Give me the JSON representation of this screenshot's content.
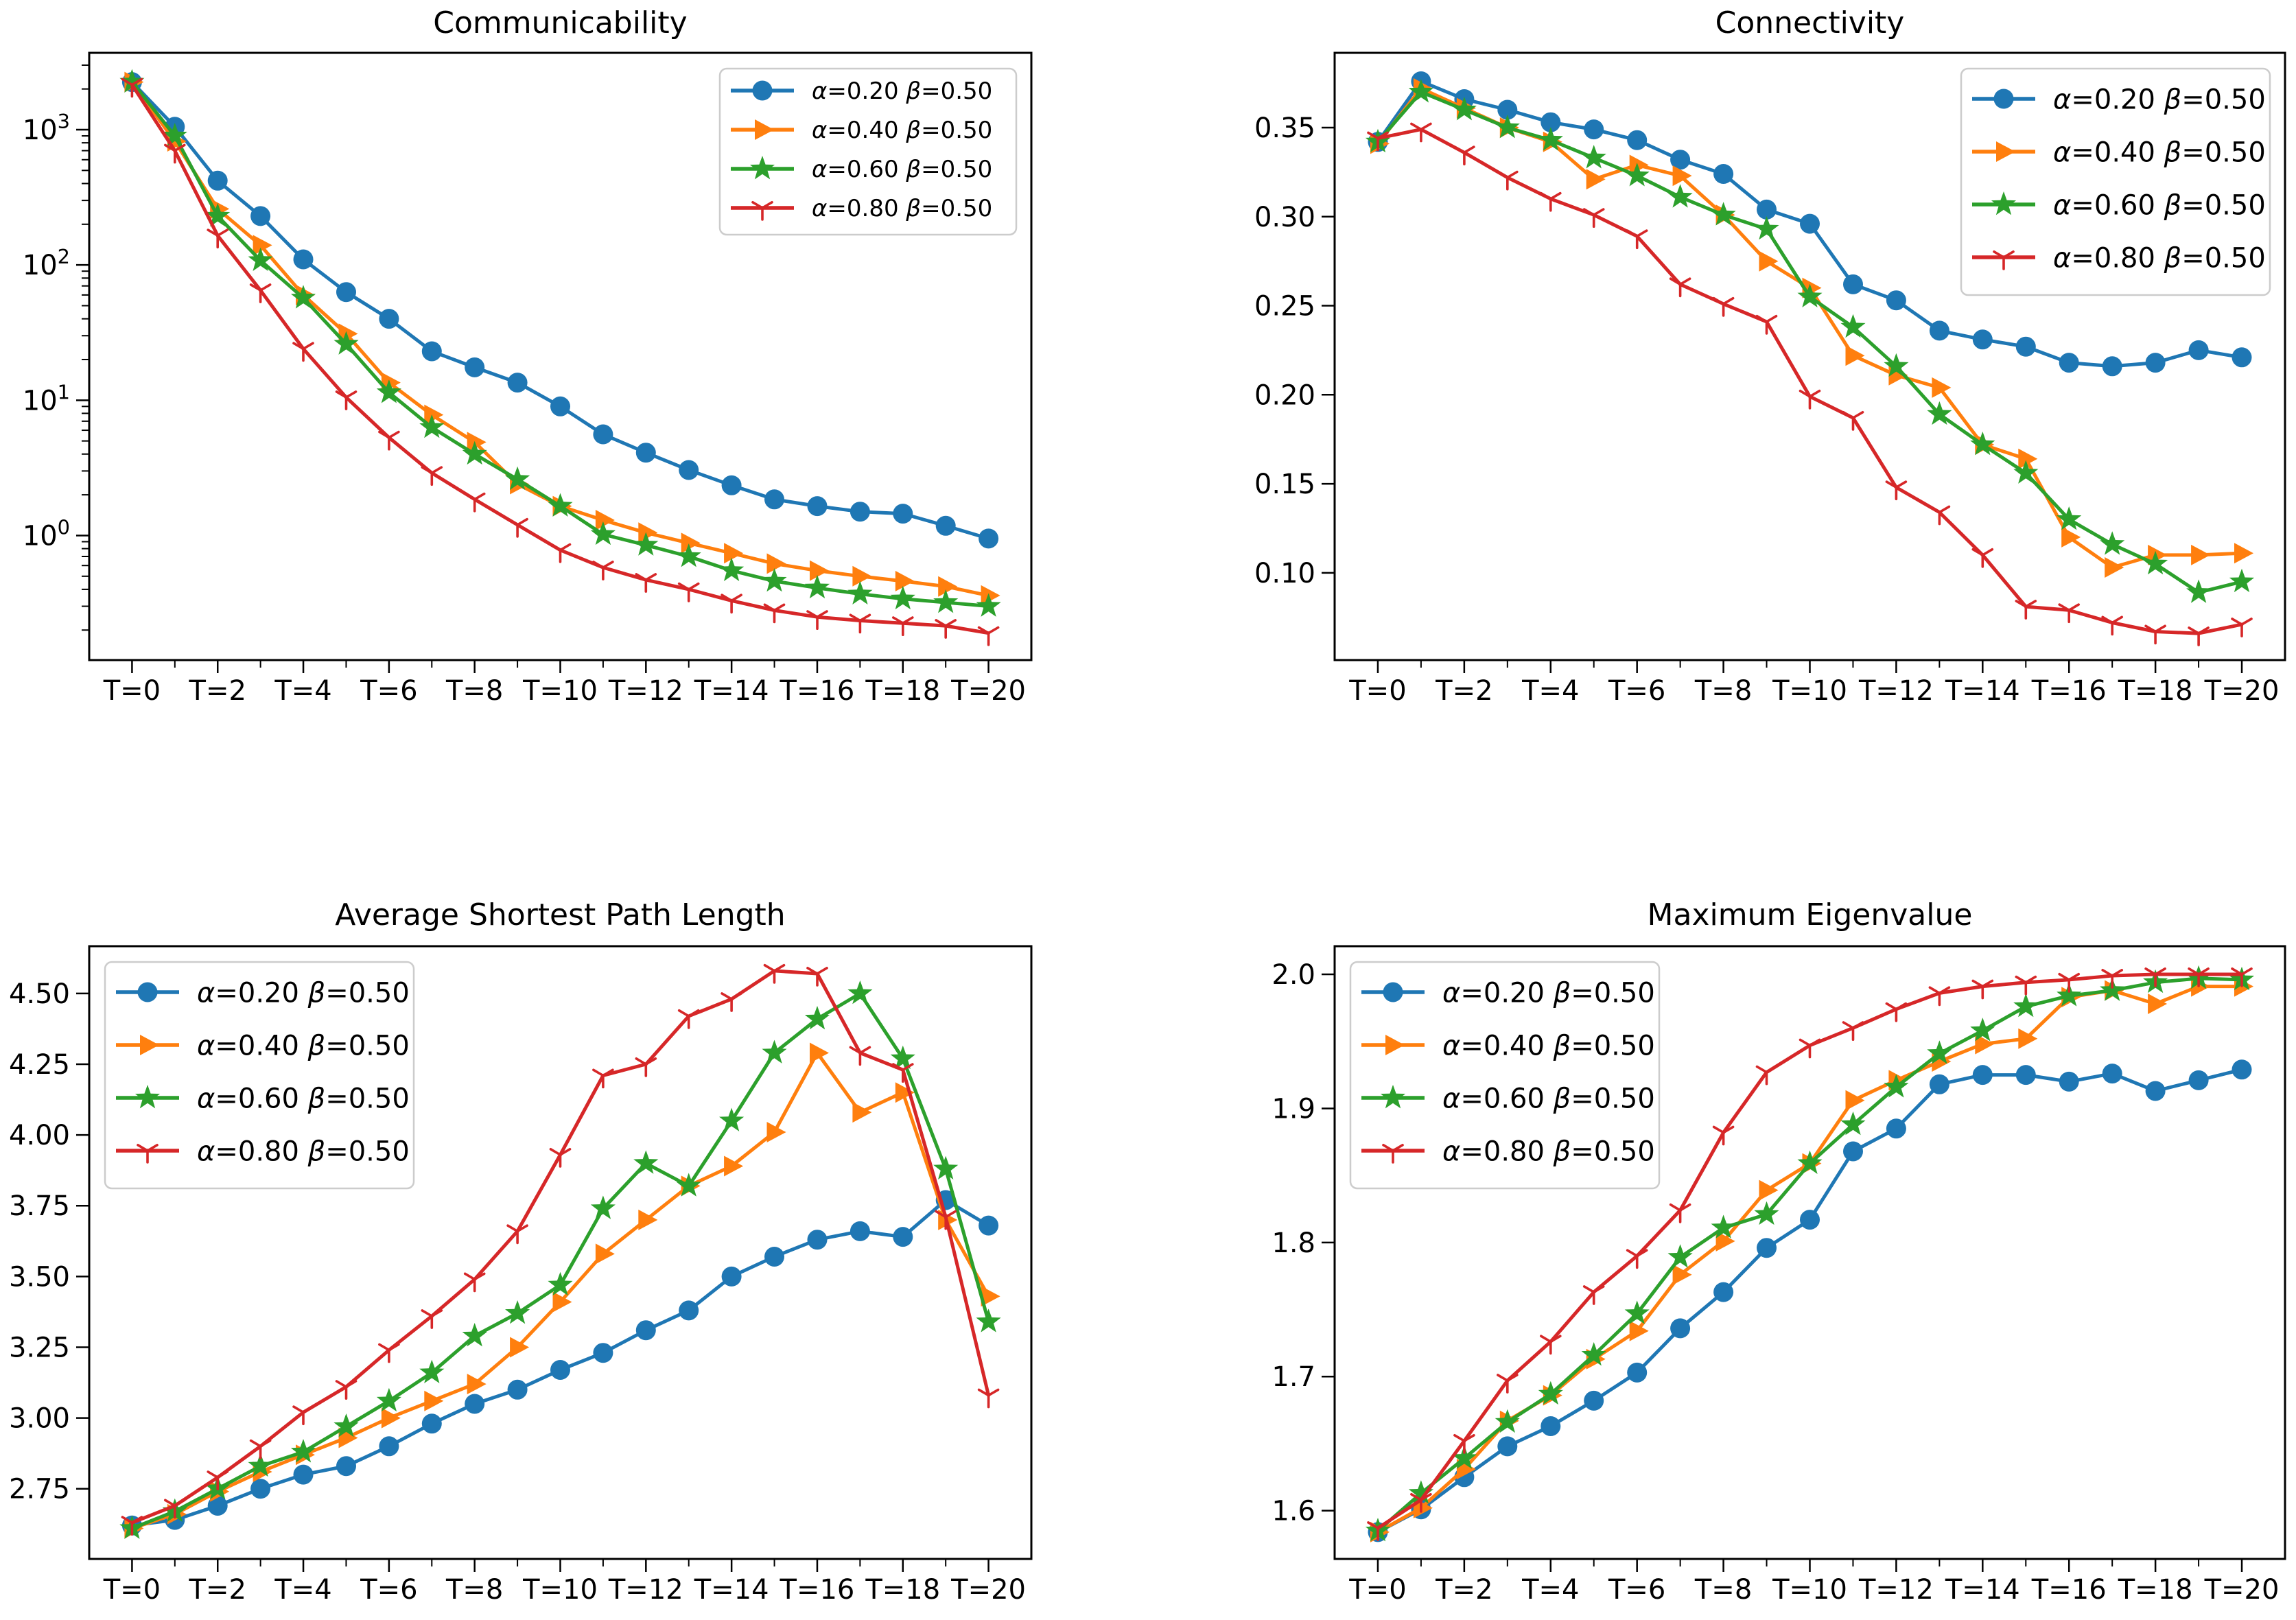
{
  "figure": {
    "background": "#ffffff",
    "axis_color": "#000000",
    "legend_border_color": "#cccccc",
    "legend_background": "#ffffff"
  },
  "chart_data": [
    {
      "id": "communicability",
      "type": "line",
      "title": "Communicability",
      "x": [
        0,
        1,
        2,
        3,
        4,
        5,
        6,
        7,
        8,
        9,
        10,
        11,
        12,
        13,
        14,
        15,
        16,
        17,
        18,
        19,
        20
      ],
      "xtick_labels": [
        "T=0",
        "T=2",
        "T=4",
        "T=6",
        "T=8",
        "T=10",
        "T=12",
        "T=14",
        "T=16",
        "T=18",
        "T=20"
      ],
      "yscale": "log",
      "ylim": [
        0.12,
        3700
      ],
      "yticks": [
        1,
        10,
        100,
        1000
      ],
      "ytick_labels": [
        "10^0",
        "10^1",
        "10^2",
        "10^3"
      ],
      "grid": false,
      "legend_position": "top-right",
      "series": [
        {
          "name": "α=0.20 β=0.50",
          "color": "#1f77b4",
          "marker": "circle",
          "values": [
            2250,
            1050,
            420,
            230,
            110,
            63,
            40,
            23,
            17.5,
            13.5,
            9,
            5.6,
            4.1,
            3.05,
            2.35,
            1.85,
            1.65,
            1.5,
            1.45,
            1.18,
            0.95
          ]
        },
        {
          "name": "α=0.40 β=0.50",
          "color": "#ff7f0e",
          "marker": "triangle-right",
          "values": [
            2250,
            820,
            260,
            140,
            60,
            31,
            13.5,
            7.8,
            4.9,
            2.4,
            1.65,
            1.3,
            1.05,
            0.88,
            0.74,
            0.62,
            0.55,
            0.5,
            0.46,
            0.42,
            0.36
          ]
        },
        {
          "name": "α=0.60 β=0.50",
          "color": "#2ca02c",
          "marker": "star",
          "values": [
            2250,
            900,
            230,
            108,
            57,
            26,
            11.4,
            6.3,
            4.0,
            2.6,
            1.65,
            1.02,
            0.85,
            0.7,
            0.55,
            0.46,
            0.41,
            0.37,
            0.34,
            0.32,
            0.3
          ]
        },
        {
          "name": "α=0.80 β=0.50",
          "color": "#d62728",
          "marker": "tri-down",
          "values": [
            2150,
            700,
            165,
            65,
            24,
            10.5,
            5.3,
            2.9,
            1.85,
            1.2,
            0.78,
            0.58,
            0.47,
            0.4,
            0.33,
            0.28,
            0.25,
            0.235,
            0.225,
            0.215,
            0.19
          ]
        }
      ]
    },
    {
      "id": "connectivity",
      "type": "line",
      "title": "Connectivity",
      "x": [
        0,
        1,
        2,
        3,
        4,
        5,
        6,
        7,
        8,
        9,
        10,
        11,
        12,
        13,
        14,
        15,
        16,
        17,
        18,
        19,
        20
      ],
      "xtick_labels": [
        "T=0",
        "T=2",
        "T=4",
        "T=6",
        "T=8",
        "T=10",
        "T=12",
        "T=14",
        "T=16",
        "T=18",
        "T=20"
      ],
      "yscale": "linear",
      "ylim": [
        0.051,
        0.392
      ],
      "yticks": [
        0.1,
        0.15,
        0.2,
        0.25,
        0.3,
        0.35
      ],
      "ytick_labels": [
        "0.10",
        "0.15",
        "0.20",
        "0.25",
        "0.30",
        "0.35"
      ],
      "grid": false,
      "legend_position": "top-right",
      "series": [
        {
          "name": "α=0.20 β=0.50",
          "color": "#1f77b4",
          "marker": "circle",
          "values": [
            0.342,
            0.376,
            0.366,
            0.36,
            0.353,
            0.349,
            0.343,
            0.332,
            0.324,
            0.304,
            0.296,
            0.262,
            0.253,
            0.236,
            0.231,
            0.227,
            0.218,
            0.216,
            0.218,
            0.225,
            0.221
          ]
        },
        {
          "name": "α=0.40 β=0.50",
          "color": "#ff7f0e",
          "marker": "triangle-right",
          "values": [
            0.341,
            0.372,
            0.361,
            0.35,
            0.342,
            0.321,
            0.329,
            0.323,
            0.301,
            0.275,
            0.26,
            0.222,
            0.211,
            0.204,
            0.172,
            0.164,
            0.12,
            0.103,
            0.11,
            0.11,
            0.111
          ]
        },
        {
          "name": "α=0.60 β=0.50",
          "color": "#2ca02c",
          "marker": "star",
          "values": [
            0.342,
            0.37,
            0.36,
            0.35,
            0.343,
            0.333,
            0.323,
            0.311,
            0.301,
            0.293,
            0.255,
            0.238,
            0.216,
            0.189,
            0.172,
            0.156,
            0.13,
            0.116,
            0.105,
            0.089,
            0.095
          ]
        },
        {
          "name": "α=0.80 β=0.50",
          "color": "#d62728",
          "marker": "tri-down",
          "values": [
            0.344,
            0.349,
            0.336,
            0.322,
            0.31,
            0.301,
            0.289,
            0.262,
            0.251,
            0.241,
            0.199,
            0.187,
            0.148,
            0.134,
            0.11,
            0.081,
            0.079,
            0.072,
            0.067,
            0.066,
            0.071
          ]
        }
      ]
    },
    {
      "id": "average-shortest-path-length",
      "type": "line",
      "title": "Average Shortest Path Length",
      "x": [
        0,
        1,
        2,
        3,
        4,
        5,
        6,
        7,
        8,
        9,
        10,
        11,
        12,
        13,
        14,
        15,
        16,
        17,
        18,
        19,
        20
      ],
      "xtick_labels": [
        "T=0",
        "T=2",
        "T=4",
        "T=6",
        "T=8",
        "T=10",
        "T=12",
        "T=14",
        "T=16",
        "T=18",
        "T=20"
      ],
      "yscale": "linear",
      "ylim": [
        2.502,
        4.667
      ],
      "yticks": [
        2.75,
        3.0,
        3.25,
        3.5,
        3.75,
        4.0,
        4.25,
        4.5
      ],
      "ytick_labels": [
        "2.75",
        "3.00",
        "3.25",
        "3.50",
        "3.75",
        "4.00",
        "4.25",
        "4.50"
      ],
      "grid": false,
      "legend_position": "top-left",
      "series": [
        {
          "name": "α=0.20 β=0.50",
          "color": "#1f77b4",
          "marker": "circle",
          "values": [
            2.62,
            2.64,
            2.69,
            2.75,
            2.8,
            2.83,
            2.9,
            2.98,
            3.05,
            3.1,
            3.17,
            3.23,
            3.31,
            3.38,
            3.5,
            3.57,
            3.63,
            3.66,
            3.64,
            3.77,
            3.68
          ]
        },
        {
          "name": "α=0.40 β=0.50",
          "color": "#ff7f0e",
          "marker": "triangle-right",
          "values": [
            2.61,
            2.66,
            2.74,
            2.81,
            2.87,
            2.93,
            3.0,
            3.06,
            3.12,
            3.25,
            3.41,
            3.58,
            3.7,
            3.82,
            3.89,
            4.01,
            4.29,
            4.08,
            4.15,
            3.7,
            3.43
          ]
        },
        {
          "name": "α=0.60 β=0.50",
          "color": "#2ca02c",
          "marker": "star",
          "values": [
            2.61,
            2.67,
            2.75,
            2.83,
            2.88,
            2.97,
            3.06,
            3.16,
            3.29,
            3.37,
            3.47,
            3.74,
            3.9,
            3.82,
            4.05,
            4.29,
            4.41,
            4.5,
            4.27,
            3.88,
            3.34
          ]
        },
        {
          "name": "α=0.80 β=0.50",
          "color": "#d62728",
          "marker": "tri-down",
          "values": [
            2.63,
            2.69,
            2.79,
            2.9,
            3.02,
            3.11,
            3.24,
            3.36,
            3.49,
            3.66,
            3.93,
            4.21,
            4.25,
            4.42,
            4.48,
            4.58,
            4.57,
            4.29,
            4.23,
            3.71,
            3.08
          ]
        }
      ]
    },
    {
      "id": "maximum-eigenvalue",
      "type": "line",
      "title": "Maximum Eigenvalue",
      "x": [
        0,
        1,
        2,
        3,
        4,
        5,
        6,
        7,
        8,
        9,
        10,
        11,
        12,
        13,
        14,
        15,
        16,
        17,
        18,
        19,
        20
      ],
      "xtick_labels": [
        "T=0",
        "T=2",
        "T=4",
        "T=6",
        "T=8",
        "T=10",
        "T=12",
        "T=14",
        "T=16",
        "T=18",
        "T=20"
      ],
      "yscale": "linear",
      "ylim": [
        1.564,
        2.021
      ],
      "yticks": [
        1.6,
        1.7,
        1.8,
        1.9,
        2.0
      ],
      "ytick_labels": [
        "1.6",
        "1.7",
        "1.8",
        "1.9",
        "2.0"
      ],
      "grid": false,
      "legend_position": "top-left",
      "series": [
        {
          "name": "α=0.20 β=0.50",
          "color": "#1f77b4",
          "marker": "circle",
          "values": [
            1.584,
            1.601,
            1.625,
            1.648,
            1.663,
            1.682,
            1.703,
            1.736,
            1.763,
            1.796,
            1.817,
            1.868,
            1.885,
            1.918,
            1.925,
            1.925,
            1.92,
            1.926,
            1.913,
            1.921,
            1.929
          ]
        },
        {
          "name": "α=0.40 β=0.50",
          "color": "#ff7f0e",
          "marker": "triangle-right",
          "values": [
            1.584,
            1.602,
            1.631,
            1.667,
            1.686,
            1.713,
            1.734,
            1.776,
            1.801,
            1.839,
            1.859,
            1.906,
            1.921,
            1.935,
            1.948,
            1.952,
            1.983,
            1.988,
            1.978,
            1.991,
            1.991
          ]
        },
        {
          "name": "α=0.60 β=0.50",
          "color": "#2ca02c",
          "marker": "star",
          "values": [
            1.585,
            1.613,
            1.639,
            1.666,
            1.687,
            1.716,
            1.747,
            1.789,
            1.811,
            1.821,
            1.859,
            1.888,
            1.916,
            1.941,
            1.958,
            1.976,
            1.984,
            1.988,
            1.994,
            1.997,
            1.996
          ]
        },
        {
          "name": "α=0.80 β=0.50",
          "color": "#d62728",
          "marker": "tri-down",
          "values": [
            1.587,
            1.608,
            1.652,
            1.697,
            1.726,
            1.763,
            1.79,
            1.824,
            1.882,
            1.927,
            1.947,
            1.96,
            1.974,
            1.986,
            1.991,
            1.994,
            1.996,
            1.999,
            2.0,
            2.0,
            2.0
          ]
        }
      ]
    }
  ]
}
